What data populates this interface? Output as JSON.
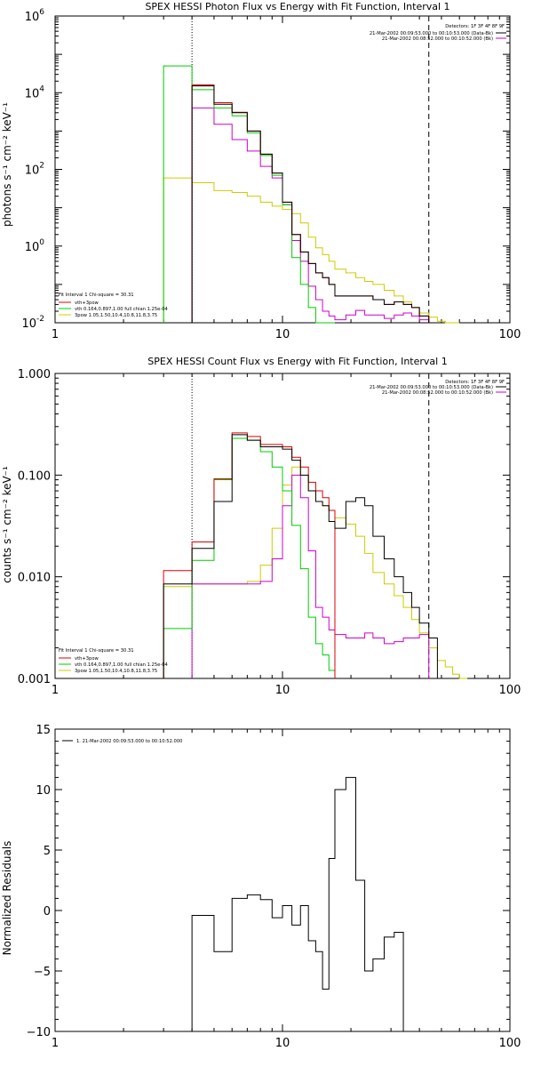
{
  "chart_data": [
    {
      "type": "line",
      "title": "SPEX HESSI Photon Flux vs Energy with Fit Function, Interval 1",
      "ylabel": "photons s⁻¹ cm⁻² keV⁻¹",
      "xlim": [
        1,
        100
      ],
      "xscale": "log",
      "ylim": [
        0.01,
        1000000
      ],
      "yscale": "log",
      "xticks": [
        "1",
        "10",
        "100"
      ],
      "yticks": [
        {
          "label": "10",
          "exp": "-2",
          "value": 0.01
        },
        {
          "label": "10",
          "exp": "0",
          "value": 1
        },
        {
          "label": "10",
          "exp": "2",
          "value": 100
        },
        {
          "label": "10",
          "exp": "4",
          "value": 10000
        },
        {
          "label": "10",
          "exp": "6",
          "value": 1000000
        }
      ],
      "vlines": [
        {
          "x": 4,
          "style": "dotted"
        },
        {
          "x": 44,
          "style": "dashed"
        }
      ],
      "legend_top_right": {
        "detectors": "Detectors: 1F 3F 4F 8F 9F",
        "entries": [
          {
            "label": "21-Mar-2002 00:09:53.000 to 00:10:53.000 (Data-Bk)",
            "color": "#000000"
          },
          {
            "label": "21-Mar-2002 00:08:52.000 to 00:10:52.000 (Bk)",
            "color": "#cc00cc"
          }
        ]
      },
      "legend_bottom_left": {
        "header": "Fit Interval 1    Chi-square = 30.31",
        "entries": [
          {
            "label": "vth+3pow",
            "color": "#dd0000"
          },
          {
            "label": "vth 0.164,0.897,1.00   full chian 1.25e-04",
            "color": "#00cc00"
          },
          {
            "label": "3pow 1.05,1.50,10.4,10.8,11.8,3.75",
            "color": "#cccc00"
          }
        ]
      },
      "edges": [
        3,
        4,
        5,
        6,
        7,
        8,
        9,
        10,
        11,
        12,
        13,
        14,
        15,
        16,
        17,
        19,
        21,
        23,
        25,
        28,
        31,
        34,
        37,
        40,
        44,
        48,
        52,
        56,
        60
      ],
      "series": [
        {
          "name": "",
          "color": "#000000",
          "values": [
            null,
            15000,
            5000,
            3000,
            1000,
            250,
            80,
            14,
            2.0,
            0.7,
            0.35,
            0.2,
            0.15,
            0.1,
            0.05,
            0.05,
            0.05,
            0.05,
            0.04,
            0.03,
            0.035,
            0.03,
            0.025,
            0.015,
            null,
            null,
            null,
            null
          ]
        },
        {
          "name": "",
          "color": "#dd0000",
          "values": [
            null,
            16000,
            5500,
            3100,
            1000,
            250,
            80,
            14,
            2.0,
            0.7,
            0.35,
            0.2,
            0.15,
            0.1,
            0.05,
            0.05,
            0.05,
            0.05,
            0.04,
            0.03,
            0.035,
            0.03,
            0.025,
            0.015,
            null,
            null,
            null,
            null
          ]
        },
        {
          "name": "",
          "color": "#00cc00",
          "values": [
            50000,
            12000,
            4000,
            2500,
            900,
            230,
            70,
            12,
            0.5,
            0.1,
            0.025,
            0.01,
            0.005,
            0.004,
            null,
            null,
            null,
            null,
            null,
            null,
            null,
            null,
            null,
            null,
            null,
            null,
            null,
            null
          ]
        },
        {
          "name": "",
          "color": "#cc00cc",
          "values": [
            null,
            4000,
            1500,
            600,
            300,
            120,
            60,
            12,
            1.4,
            0.4,
            0.09,
            0.04,
            0.02,
            0.015,
            0.012,
            0.016,
            0.021,
            0.016,
            0.016,
            0.013,
            0.016,
            0.018,
            0.015,
            0.012,
            null,
            null,
            null,
            null
          ]
        },
        {
          "name": "",
          "color": "#cccc00",
          "values": [
            60,
            45,
            28,
            25,
            20,
            14,
            11,
            9,
            7,
            4,
            1.7,
            0.9,
            0.6,
            0.4,
            0.25,
            0.2,
            0.15,
            0.12,
            0.1,
            0.07,
            0.05,
            0.035,
            0.025,
            0.018,
            0.014,
            0.011,
            0.009,
            0.007
          ]
        }
      ]
    },
    {
      "type": "line",
      "title": "SPEX HESSI Count Flux vs Energy with Fit Function, Interval 1",
      "ylabel": "counts s⁻¹ cm⁻² keV⁻¹",
      "xlim": [
        1,
        100
      ],
      "xscale": "log",
      "ylim": [
        0.001,
        1.0
      ],
      "yscale": "log",
      "xticks": [
        "1",
        "10",
        "100"
      ],
      "yticks": [
        {
          "label": "0.001",
          "value": 0.001
        },
        {
          "label": "0.010",
          "value": 0.01
        },
        {
          "label": "0.100",
          "value": 0.1
        },
        {
          "label": "1.000",
          "value": 1.0
        }
      ],
      "vlines": [
        {
          "x": 4,
          "style": "dotted"
        },
        {
          "x": 44,
          "style": "dashed"
        }
      ],
      "legend_top_right": {
        "detectors": "Detectors: 1F 3F 4F 8F 9F",
        "entries": [
          {
            "label": "21-Mar-2002 00:09:53.000 to 00:10:53.000 (Data-Bk)",
            "color": "#000000"
          },
          {
            "label": "21-Mar-2002 00:08:52.000 to 00:10:52.000 (Bk)",
            "color": "#cc00cc"
          }
        ]
      },
      "legend_bottom_left": {
        "header": "Fit Interval 1    Chi-square = 30.31",
        "entries": [
          {
            "label": "vth+3pow",
            "color": "#dd0000"
          },
          {
            "label": "vth 0.164,0.897,1.00   full chian 1.25e-04",
            "color": "#00cc00"
          },
          {
            "label": "3pow 1.05,1.50,10.4,10.8,11.8,3.75",
            "color": "#cccc00"
          }
        ]
      },
      "edges": [
        3,
        4,
        5,
        6,
        7,
        8,
        9,
        10,
        11,
        12,
        13,
        14,
        15,
        16,
        17,
        19,
        21,
        23,
        25,
        28,
        31,
        34,
        37,
        40,
        44,
        48,
        52,
        56,
        60,
        65
      ],
      "series": [
        {
          "name": "",
          "color": "#000000",
          "values": [
            0.0085,
            0.019,
            0.055,
            0.25,
            0.22,
            0.19,
            0.19,
            0.18,
            0.14,
            0.1,
            0.07,
            0.055,
            0.05,
            0.035,
            0.03,
            0.055,
            0.06,
            0.05,
            0.025,
            0.015,
            0.01,
            0.007,
            0.005,
            0.0035,
            0.0025,
            null,
            null,
            null,
            null
          ]
        },
        {
          "name": "",
          "color": "#dd0000",
          "values": [
            0.0115,
            0.022,
            0.092,
            0.26,
            0.24,
            0.2,
            0.2,
            0.19,
            0.15,
            0.12,
            0.085,
            0.07,
            0.06,
            0.045,
            null,
            null,
            null,
            null,
            null,
            null,
            null,
            null,
            null,
            null,
            null,
            null,
            null,
            null,
            null
          ]
        },
        {
          "name": "",
          "color": "#00cc00",
          "values": [
            0.0031,
            0.0145,
            0.09,
            0.23,
            0.22,
            0.17,
            0.12,
            0.07,
            0.032,
            0.012,
            0.004,
            0.0022,
            0.0017,
            0.0012,
            null,
            null,
            null,
            null,
            null,
            null,
            null,
            null,
            null,
            null,
            null,
            null,
            null,
            null,
            null
          ]
        },
        {
          "name": "",
          "color": "#cc00cc",
          "values": [
            null,
            0.0085,
            0.0085,
            0.0085,
            0.0085,
            0.009,
            0.015,
            0.05,
            0.1,
            0.06,
            0.018,
            0.005,
            0.004,
            0.003,
            0.0027,
            0.0025,
            0.0025,
            0.0028,
            0.0025,
            0.0022,
            0.0023,
            0.0025,
            0.0025,
            0.0027,
            null,
            null,
            null,
            null,
            null
          ]
        },
        {
          "name": "",
          "color": "#cccc00",
          "values": [
            0.008,
            0.0085,
            0.0085,
            0.0085,
            0.009,
            0.013,
            0.03,
            0.08,
            0.12,
            0.1,
            0.07,
            0.055,
            0.05,
            0.045,
            0.038,
            0.033,
            0.025,
            0.017,
            0.011,
            0.0085,
            0.0065,
            0.005,
            0.0038,
            0.0028,
            0.002,
            0.0015,
            0.0013,
            0.0011,
            0.001
          ]
        }
      ]
    },
    {
      "type": "line",
      "title": "",
      "ylabel": "Normalized Residuals",
      "xlim": [
        1,
        100
      ],
      "xscale": "log",
      "ylim": [
        -10,
        15
      ],
      "yscale": "linear",
      "xticks": [
        "1",
        "10",
        "100"
      ],
      "yticks": [
        {
          "label": "15",
          "value": 15
        },
        {
          "label": "10",
          "value": 10
        },
        {
          "label": "5",
          "value": 5
        },
        {
          "label": "0",
          "value": 0
        },
        {
          "label": "−5",
          "value": -5
        },
        {
          "label": "−10",
          "value": -10
        }
      ],
      "legend_top_left": {
        "entries": [
          {
            "label": "1. 21-Mar-2002 00:09:53.000 to 00:10:52.000",
            "color": "#000000"
          }
        ]
      },
      "edges": [
        4,
        5,
        6,
        7,
        8,
        9,
        10,
        11,
        12,
        13,
        14,
        15,
        16,
        17,
        19,
        21,
        23,
        25,
        28,
        31,
        34,
        37,
        40,
        44
      ],
      "series": [
        {
          "name": "",
          "color": "#000000",
          "values": [
            -0.4,
            -3.4,
            1.0,
            1.3,
            0.9,
            -0.6,
            0.4,
            -1.2,
            0.4,
            -2.5,
            -3.4,
            -6.5,
            4.3,
            10.0,
            11.0,
            2.5,
            -5.0,
            -4.0,
            -2.2,
            -1.8,
            null,
            null,
            null
          ]
        }
      ]
    }
  ]
}
